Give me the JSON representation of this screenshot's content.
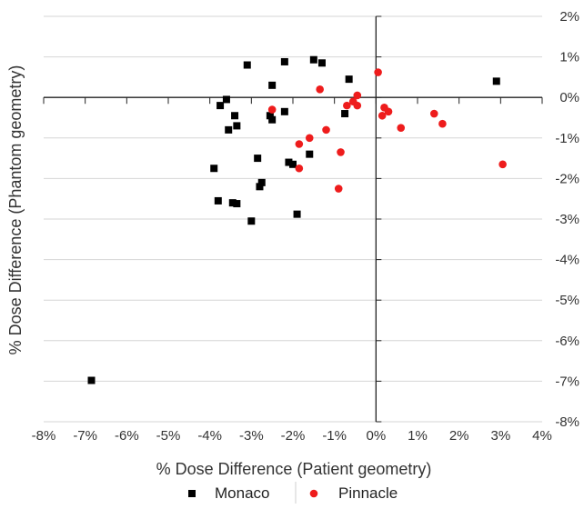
{
  "chart_data": {
    "type": "scatter",
    "xlabel": "% Dose Difference (Patient geometry)",
    "ylabel": "% Dose Difference (Phantom geometry)",
    "xlim": [
      -8,
      4
    ],
    "ylim": [
      -8,
      2
    ],
    "x_ticks": [
      -8,
      -7,
      -6,
      -5,
      -4,
      -3,
      -2,
      -1,
      0,
      1,
      2,
      3,
      4
    ],
    "y_ticks": [
      2,
      1,
      0,
      -1,
      -2,
      -3,
      -4,
      -5,
      -6,
      -7,
      -8
    ],
    "x_tick_labels": [
      "-8%",
      "-7%",
      "-6%",
      "-5%",
      "-4%",
      "-3%",
      "-2%",
      "-1%",
      "0%",
      "1%",
      "2%",
      "3%",
      "4%"
    ],
    "y_tick_labels": [
      "2%",
      "1%",
      "0%",
      "-1%",
      "-2%",
      "-3%",
      "-4%",
      "-5%",
      "-6%",
      "-7%",
      "-8%"
    ],
    "grid": "horizontal",
    "legend_position": "bottom",
    "series": [
      {
        "name": "Monaco",
        "marker": "square",
        "color": "#000000",
        "points": [
          [
            -3.1,
            0.8
          ],
          [
            -2.2,
            0.88
          ],
          [
            -1.5,
            0.93
          ],
          [
            -1.3,
            0.85
          ],
          [
            -2.5,
            0.3
          ],
          [
            -3.6,
            -0.05
          ],
          [
            -3.75,
            -0.2
          ],
          [
            -0.65,
            0.45
          ],
          [
            2.9,
            0.4
          ],
          [
            -3.4,
            -0.45
          ],
          [
            -2.55,
            -0.45
          ],
          [
            -2.5,
            -0.55
          ],
          [
            -2.2,
            -0.35
          ],
          [
            -0.75,
            -0.4
          ],
          [
            -3.35,
            -0.7
          ],
          [
            -3.55,
            -0.8
          ],
          [
            -3.9,
            -1.75
          ],
          [
            -2.85,
            -1.5
          ],
          [
            -2.1,
            -1.6
          ],
          [
            -2.0,
            -1.65
          ],
          [
            -1.6,
            -1.4
          ],
          [
            -2.75,
            -2.1
          ],
          [
            -2.8,
            -2.2
          ],
          [
            -3.8,
            -2.55
          ],
          [
            -3.45,
            -2.6
          ],
          [
            -3.35,
            -2.62
          ],
          [
            -1.9,
            -2.88
          ],
          [
            -3.0,
            -3.05
          ],
          [
            -6.85,
            -6.98
          ]
        ]
      },
      {
        "name": "Pinnacle",
        "marker": "circle",
        "color": "#ee1c1c",
        "points": [
          [
            0.05,
            0.62
          ],
          [
            -1.35,
            0.2
          ],
          [
            -0.45,
            0.05
          ],
          [
            -0.55,
            -0.1
          ],
          [
            -0.45,
            -0.2
          ],
          [
            -0.7,
            -0.2
          ],
          [
            -2.5,
            -0.3
          ],
          [
            0.2,
            -0.25
          ],
          [
            0.3,
            -0.35
          ],
          [
            0.15,
            -0.45
          ],
          [
            0.6,
            -0.75
          ],
          [
            1.4,
            -0.4
          ],
          [
            1.6,
            -0.65
          ],
          [
            -1.2,
            -0.8
          ],
          [
            -1.6,
            -1.0
          ],
          [
            -1.85,
            -1.15
          ],
          [
            -0.85,
            -1.35
          ],
          [
            -1.85,
            -1.75
          ],
          [
            -0.9,
            -2.25
          ],
          [
            3.05,
            -1.65
          ]
        ]
      }
    ]
  }
}
